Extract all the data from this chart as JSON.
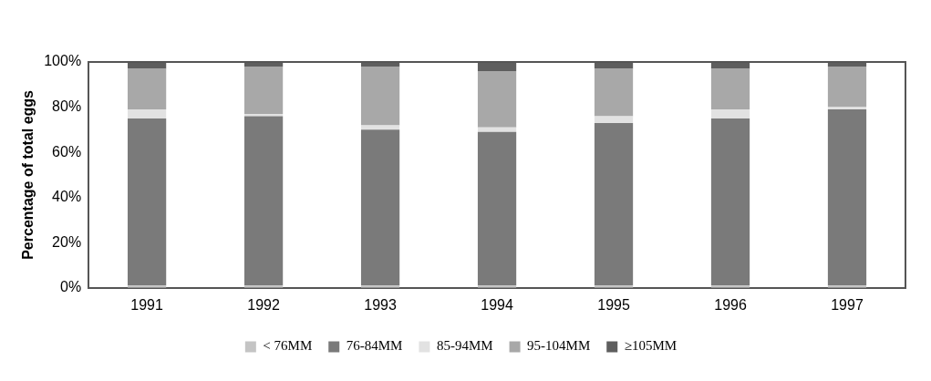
{
  "chart_data": {
    "type": "bar",
    "stacked": true,
    "ylabel": "Percentage of total eggs",
    "categories": [
      "1991",
      "1992",
      "1993",
      "1994",
      "1995",
      "1996",
      "1997"
    ],
    "series": [
      {
        "name": "< 76MM",
        "color": "#c4c4c4",
        "values": [
          1,
          1,
          1,
          1,
          1,
          1,
          1
        ]
      },
      {
        "name": "76-84MM",
        "color": "#7a7a7a",
        "values": [
          74,
          75,
          69,
          68,
          72,
          74,
          78
        ]
      },
      {
        "name": "85-94MM",
        "color": "#e2e2e2",
        "values": [
          4,
          1,
          2,
          2,
          3,
          4,
          1
        ]
      },
      {
        "name": "95-104MM",
        "color": "#a8a8a8",
        "values": [
          18,
          21,
          26,
          25,
          21,
          18,
          18
        ]
      },
      {
        "name": "≥105MM",
        "color": "#5e5e5e",
        "values": [
          3,
          2,
          2,
          4,
          3,
          3,
          2
        ]
      }
    ],
    "ylim": [
      0,
      100
    ],
    "yticks": [
      {
        "value": 0,
        "label": "0%"
      },
      {
        "value": 20,
        "label": "20%"
      },
      {
        "value": 40,
        "label": "40%"
      },
      {
        "value": 60,
        "label": "60%"
      },
      {
        "value": 80,
        "label": "80%"
      },
      {
        "value": 100,
        "label": "100%"
      }
    ],
    "grid": false,
    "legend": "bottom"
  }
}
